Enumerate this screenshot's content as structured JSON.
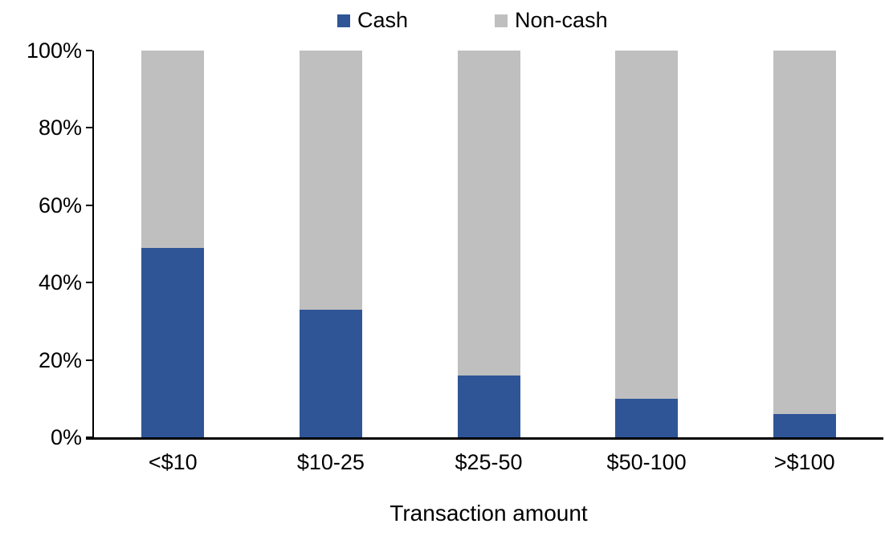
{
  "chart": {
    "xlabel": "Transaction amount",
    "colors": {
      "cash": "#2F5597",
      "non_cash": "#BFBFBF",
      "axis": "#000000",
      "background": "#FFFFFF"
    }
  },
  "chart_data": {
    "type": "bar",
    "stacked": true,
    "stacked_to_100_percent": true,
    "title": "",
    "xlabel": "Transaction amount",
    "ylabel": "",
    "ylim": [
      0,
      100
    ],
    "grid": false,
    "legend_position": "top",
    "categories": [
      "<$10",
      "$10-25",
      "$25-50",
      "$50-100",
      ">$100"
    ],
    "series": [
      {
        "name": "Cash",
        "color": "#2F5597",
        "values": [
          49,
          33,
          16,
          10,
          6
        ]
      },
      {
        "name": "Non-cash",
        "color": "#BFBFBF",
        "values": [
          51,
          67,
          84,
          90,
          94
        ]
      }
    ],
    "y_ticks": [
      {
        "value": 0,
        "label": "0%"
      },
      {
        "value": 20,
        "label": "20%"
      },
      {
        "value": 40,
        "label": "40%"
      },
      {
        "value": 60,
        "label": "60%"
      },
      {
        "value": 80,
        "label": "80%"
      },
      {
        "value": 100,
        "label": "100%"
      }
    ]
  }
}
